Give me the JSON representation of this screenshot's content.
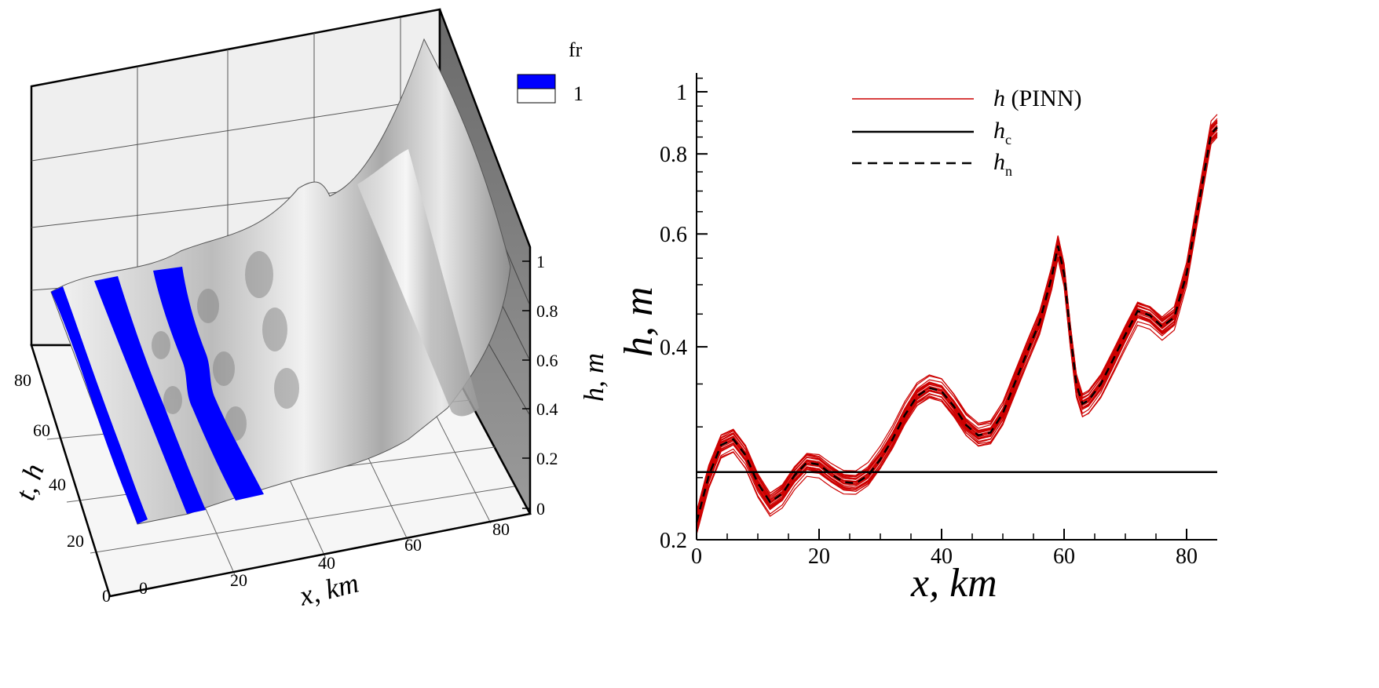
{
  "surface_plot": {
    "legend_title": "fr",
    "legend_value": "1",
    "legend_colors": [
      "#0000ff",
      "#ffffff"
    ],
    "x_axis_label": "x, km",
    "x_ticks": [
      "0",
      "20",
      "40",
      "60",
      "80"
    ],
    "t_axis_label": "t, h",
    "t_ticks": [
      "0",
      "20",
      "40",
      "60",
      "80"
    ],
    "h_axis_label": "h, m",
    "h_ticks": [
      "0",
      "0.2",
      "0.4",
      "0.6",
      "0.8",
      "1"
    ]
  },
  "chart_data": {
    "type": "line",
    "ylabel": "h, m",
    "xlabel": "x, km",
    "xlim": [
      0,
      85
    ],
    "ylim": [
      0.2,
      1.07
    ],
    "y_scale": "log",
    "x_ticks": [
      "0",
      "20",
      "40",
      "60",
      "80"
    ],
    "y_ticks": [
      "0.2",
      "0.4",
      "0.6",
      "0.8",
      "1"
    ],
    "legend": {
      "placement": "top-center",
      "entries": [
        {
          "label_italic": "h",
          "label_rest": " (PINN)",
          "color": "#cc0000",
          "style": "solid-thin"
        },
        {
          "label_italic": "h",
          "subscript": "c",
          "color": "#000000",
          "style": "solid"
        },
        {
          "label_italic": "h",
          "subscript": "n",
          "color": "#000000",
          "style": "dashed"
        }
      ]
    },
    "series": [
      {
        "key": "h_n",
        "color": "#000000",
        "x": [
          0,
          2,
          4,
          6,
          8,
          10,
          12,
          14,
          16,
          18,
          20,
          22,
          24,
          26,
          28,
          30,
          32,
          34,
          36,
          38,
          40,
          42,
          44,
          46,
          48,
          50,
          52,
          54,
          56,
          58,
          59,
          60,
          61,
          62,
          63,
          64,
          66,
          68,
          70,
          72,
          74,
          76,
          78,
          80,
          82,
          84,
          85
        ],
        "y": [
          0.213,
          0.252,
          0.281,
          0.287,
          0.271,
          0.245,
          0.229,
          0.236,
          0.252,
          0.264,
          0.262,
          0.253,
          0.246,
          0.245,
          0.252,
          0.267,
          0.287,
          0.313,
          0.335,
          0.345,
          0.341,
          0.323,
          0.302,
          0.291,
          0.294,
          0.315,
          0.352,
          0.393,
          0.437,
          0.515,
          0.575,
          0.52,
          0.42,
          0.35,
          0.326,
          0.33,
          0.35,
          0.382,
          0.418,
          0.455,
          0.448,
          0.43,
          0.445,
          0.52,
          0.67,
          0.86,
          0.88
        ]
      },
      {
        "key": "h_c",
        "color": "#000000",
        "x": [
          0,
          85
        ],
        "y": [
          0.255,
          0.255
        ]
      }
    ],
    "pinn_ensemble": {
      "color": "#cc0000",
      "count": 24,
      "description_values": "band of curves around h_n, spread about ±5% of h"
    }
  }
}
